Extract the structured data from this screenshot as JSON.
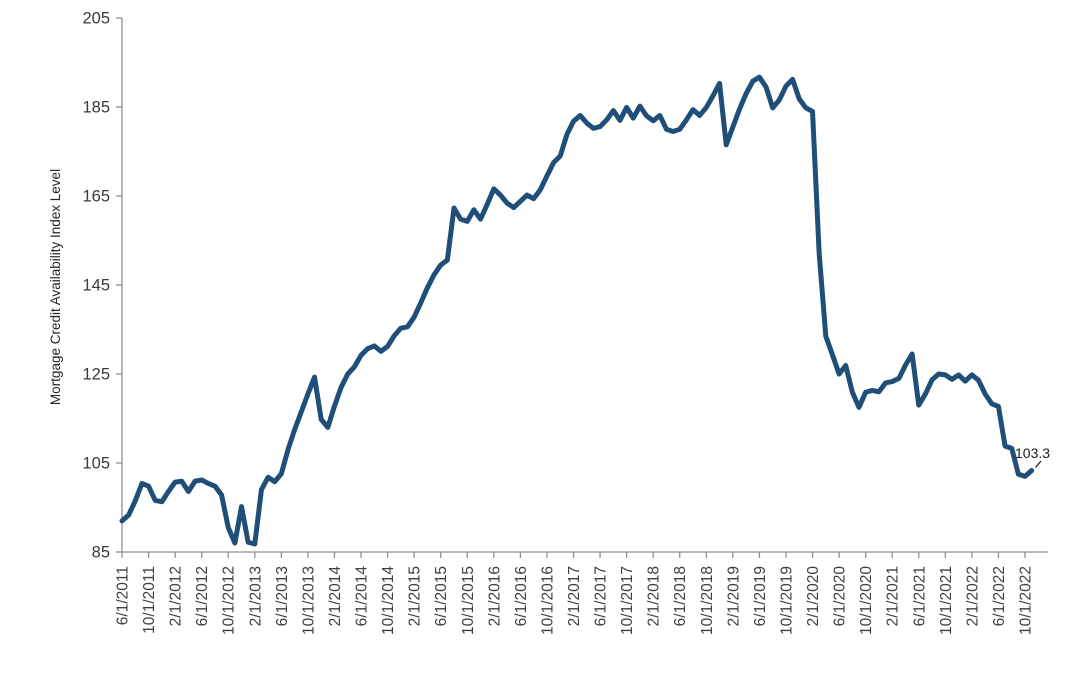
{
  "chart_data": {
    "type": "line",
    "title": "",
    "xlabel": "",
    "ylabel": "Mortgage Credit Availability Index Level",
    "ylim": [
      85,
      205
    ],
    "yticks": [
      85,
      105,
      125,
      145,
      165,
      185,
      205
    ],
    "grid": false,
    "legend_position": "none",
    "x_start": "6/1/2011",
    "x_frequency": "monthly",
    "xtick_labels": [
      "6/1/2011",
      "10/1/2011",
      "2/1/2012",
      "6/1/2012",
      "10/1/2012",
      "2/1/2013",
      "6/1/2013",
      "10/1/2013",
      "2/1/2014",
      "6/1/2014",
      "10/1/2014",
      "2/1/2015",
      "6/1/2015",
      "10/1/2015",
      "2/1/2016",
      "6/1/2016",
      "10/1/2016",
      "2/1/2017",
      "6/1/2017",
      "10/1/2017",
      "2/1/2018",
      "6/1/2018",
      "10/1/2018",
      "2/1/2019",
      "6/1/2019",
      "10/1/2019",
      "2/1/2020",
      "6/1/2020",
      "10/1/2020",
      "2/1/2021",
      "6/1/2021",
      "10/1/2021",
      "2/1/2022",
      "6/1/2022",
      "10/1/2022"
    ],
    "xtick_month_interval": 4,
    "series": [
      {
        "name": "Mortgage Credit Availability Index Level",
        "color": "#1F4E79",
        "values": [
          92.0,
          93.3,
          96.5,
          100.4,
          99.8,
          96.6,
          96.3,
          98.6,
          100.7,
          100.9,
          98.6,
          100.9,
          101.2,
          100.4,
          99.8,
          97.8,
          90.5,
          87.0,
          95.2,
          87.2,
          86.8,
          99.0,
          101.8,
          100.8,
          102.6,
          108.0,
          112.5,
          116.5,
          120.5,
          124.3,
          114.8,
          113.0,
          117.8,
          122.0,
          125.0,
          126.6,
          129.2,
          130.7,
          131.3,
          130.1,
          131.2,
          133.6,
          135.3,
          135.6,
          137.8,
          141.0,
          144.4,
          147.3,
          149.5,
          150.6,
          162.3,
          159.8,
          159.3,
          161.9,
          159.8,
          163.1,
          166.6,
          165.2,
          163.4,
          162.4,
          163.8,
          165.2,
          164.4,
          166.4,
          169.5,
          172.5,
          174.0,
          178.8,
          181.8,
          183.1,
          181.4,
          180.2,
          180.6,
          182.1,
          184.2,
          182.0,
          184.9,
          182.5,
          185.2,
          183.0,
          181.9,
          183.1,
          180.0,
          179.5,
          180.0,
          182.1,
          184.4,
          183.1,
          184.9,
          187.5,
          190.3,
          176.5,
          180.5,
          184.5,
          188.0,
          190.8,
          191.7,
          189.5,
          184.8,
          186.6,
          189.7,
          191.2,
          186.8,
          184.8,
          184.0,
          152.1,
          133.5,
          129.3,
          125.0,
          126.9,
          120.9,
          117.5,
          120.9,
          121.3,
          121.0,
          123.0,
          123.3,
          124.0,
          127.0,
          129.5,
          118.0,
          120.5,
          123.7,
          125.0,
          124.8,
          123.8,
          124.8,
          123.4,
          124.8,
          123.6,
          120.5,
          118.3,
          117.7,
          108.8,
          108.3,
          102.5,
          102.0,
          103.3
        ]
      }
    ],
    "last_point_label": "103.3"
  },
  "colors": {
    "line": "#1F4E79",
    "axis": "#8f8f8f",
    "tick_text": "#3a3a3a",
    "background": "#ffffff"
  },
  "layout_values": {
    "note": "values shown on screen only",
    "y_axis_min_label": "85",
    "y_axis_max_label": "205"
  }
}
